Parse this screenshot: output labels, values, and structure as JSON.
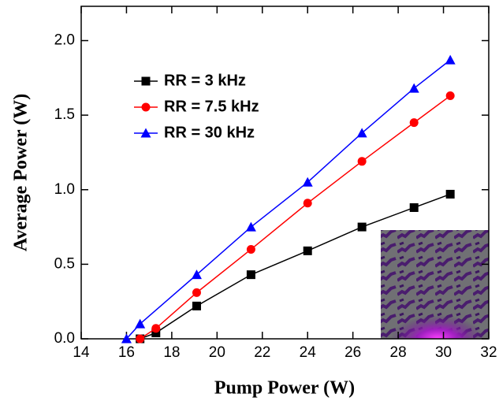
{
  "chart_data": {
    "type": "line",
    "xlabel": "Pump Power (W)",
    "ylabel": "Average Power (W)",
    "xlim": [
      14,
      32
    ],
    "xticks": [
      14,
      16,
      18,
      20,
      22,
      24,
      26,
      28,
      30,
      32
    ],
    "ylim": [
      0,
      2.23
    ],
    "yticks": [
      {
        "value": 0,
        "label": "0.0"
      },
      {
        "value": 0.5,
        "label": "0.5"
      },
      {
        "value": 1,
        "label": "1.0"
      },
      {
        "value": 1.5,
        "label": "1.5"
      },
      {
        "value": 2,
        "label": "2.0"
      }
    ],
    "legend": "upper left",
    "series": [
      {
        "name": "RR = 3 kHz",
        "color": "#000000",
        "marker": "square",
        "x": [
          16.6,
          17.3,
          19.1,
          21.5,
          24.0,
          26.4,
          28.7,
          30.3
        ],
        "values": [
          0.0,
          0.04,
          0.22,
          0.43,
          0.59,
          0.75,
          0.88,
          0.97
        ]
      },
      {
        "name": "RR = 7.5 kHz",
        "color": "#ff0000",
        "marker": "circle",
        "x": [
          16.6,
          17.3,
          19.1,
          21.5,
          24.0,
          26.4,
          28.7,
          30.3
        ],
        "values": [
          0.0,
          0.07,
          0.31,
          0.6,
          0.91,
          1.19,
          1.45,
          1.63
        ]
      },
      {
        "name": "RR = 30 kHz",
        "color": "#0000ff",
        "marker": "triangle",
        "x": [
          16.0,
          16.6,
          19.1,
          21.5,
          24.0,
          26.4,
          28.7,
          30.3
        ],
        "values": [
          0.0,
          0.1,
          0.43,
          0.75,
          1.05,
          1.38,
          1.68,
          1.87
        ]
      }
    ]
  }
}
